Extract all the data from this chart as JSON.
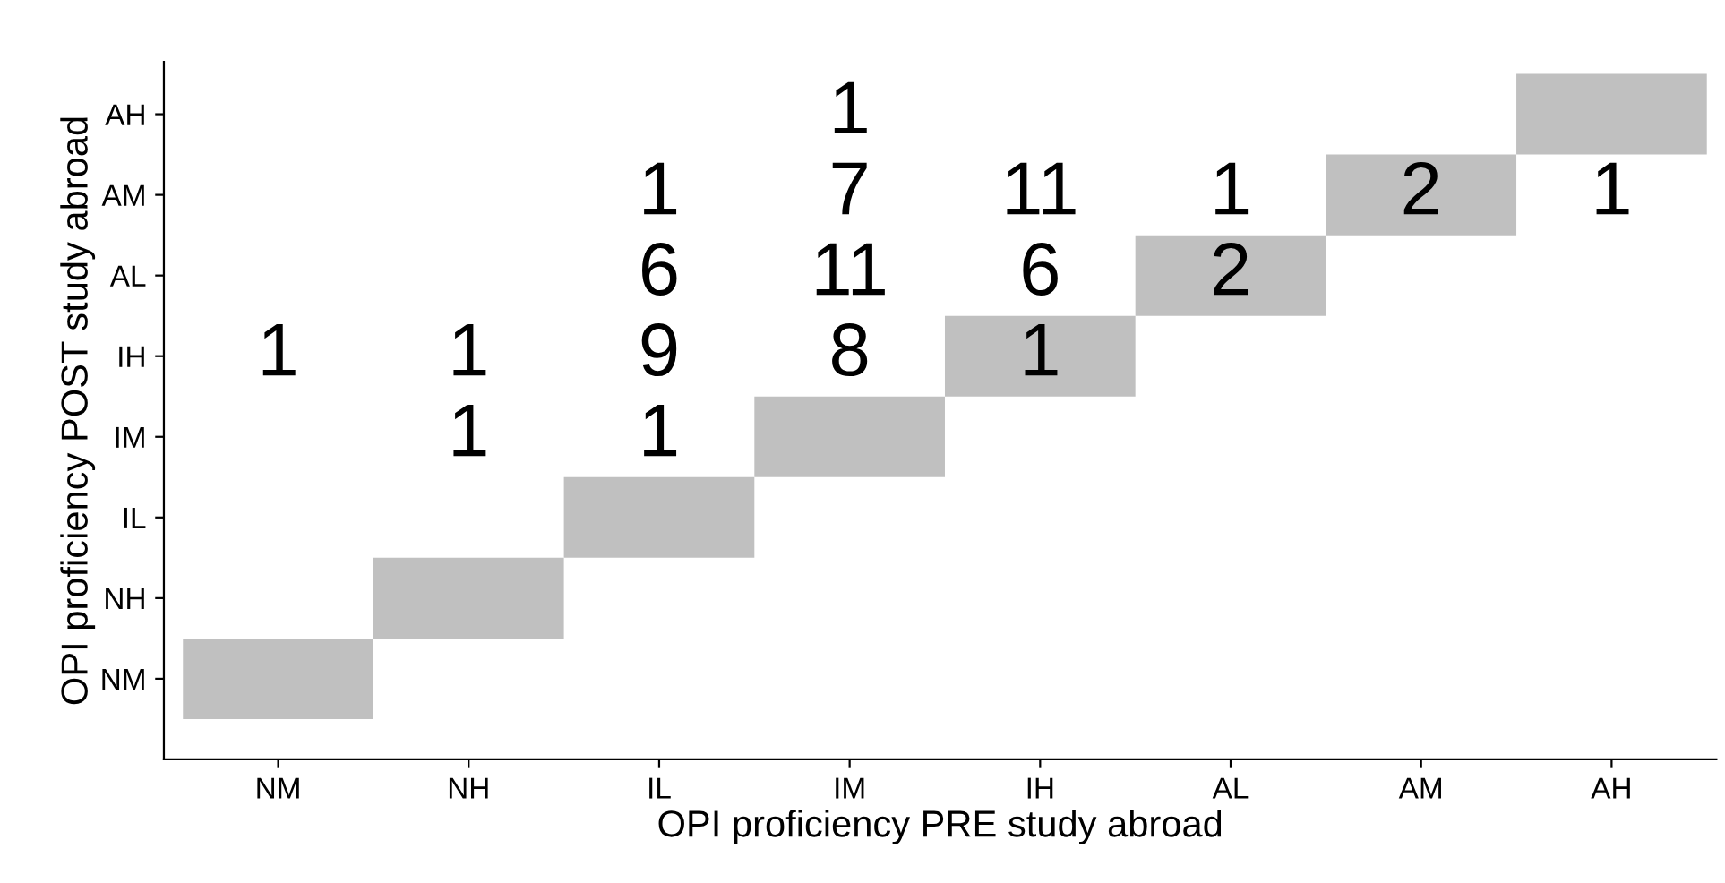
{
  "chart_data": {
    "type": "heatmap",
    "xlabel": "OPI proficiency PRE study abroad",
    "ylabel": "OPI proficiency POST study abroad",
    "categories": [
      "NM",
      "NH",
      "IL",
      "IM",
      "IH",
      "AL",
      "AM",
      "AH"
    ],
    "y_categories": [
      "AH",
      "AM",
      "AL",
      "IH",
      "IM",
      "IL",
      "NH",
      "NM"
    ],
    "color": "#c0c0c0",
    "cells": [
      [
        null,
        null,
        null,
        1,
        null,
        null,
        null,
        null
      ],
      [
        null,
        null,
        1,
        7,
        11,
        1,
        2,
        1
      ],
      [
        null,
        null,
        6,
        11,
        6,
        2,
        null,
        null
      ],
      [
        1,
        1,
        9,
        8,
        1,
        null,
        null,
        null
      ],
      [
        null,
        1,
        1,
        null,
        null,
        null,
        null,
        null
      ],
      [
        null,
        null,
        null,
        null,
        null,
        null,
        null,
        null
      ],
      [
        null,
        null,
        null,
        null,
        null,
        null,
        null,
        null
      ],
      [
        null,
        null,
        null,
        null,
        null,
        null,
        null,
        null
      ]
    ],
    "data_labels": true
  }
}
